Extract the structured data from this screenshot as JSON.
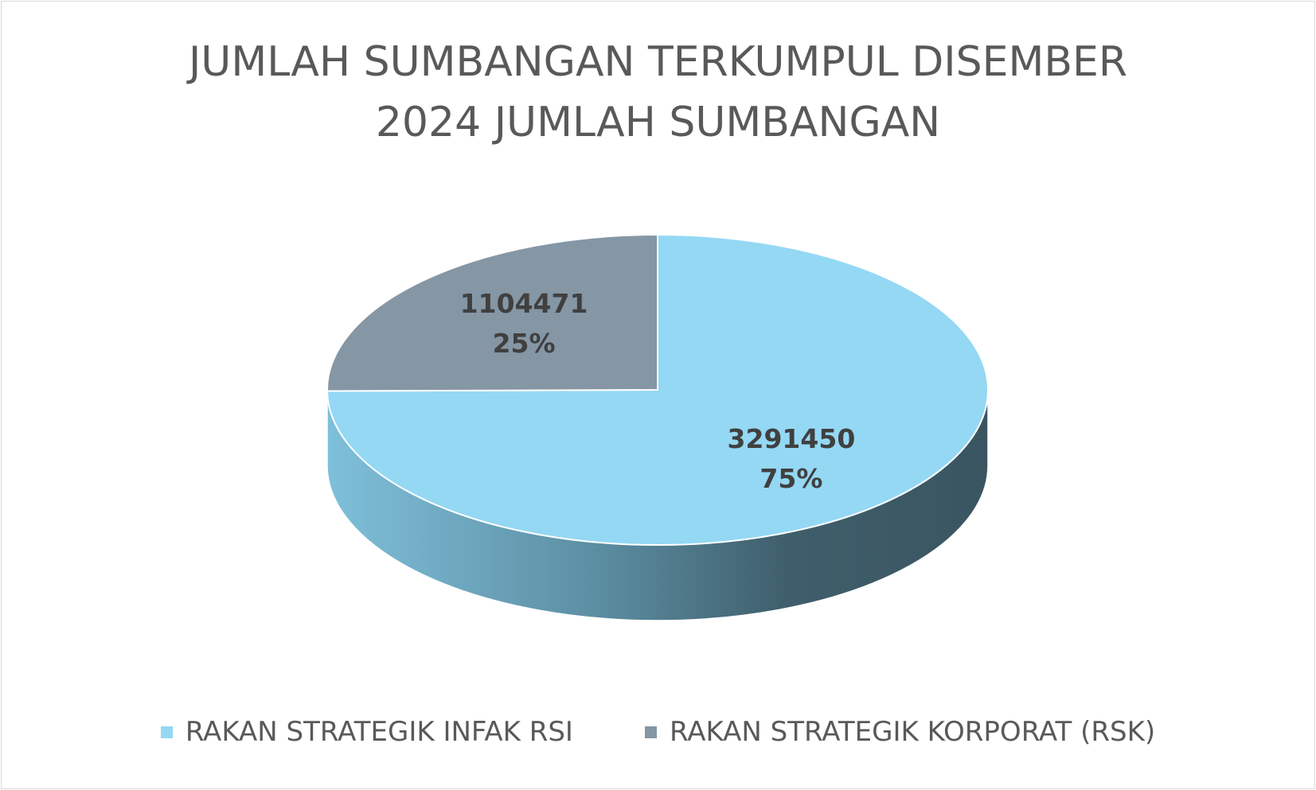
{
  "chart_data": {
    "type": "pie",
    "title_lines": [
      "JUMLAH SUMBANGAN TERKUMPUL DISEMBER",
      "2024 JUMLAH SUMBANGAN"
    ],
    "series": [
      {
        "categories": [
          "RAKAN STRATEGIK INFAK RSI",
          "RAKAN STRATEGIK KORPORAT (RSK)"
        ],
        "values": [
          3291450,
          1104471
        ],
        "data_labels": [
          "3291450",
          "1104471"
        ],
        "percent_labels": [
          "75%",
          "25%"
        ],
        "colors": [
          "#94d8f4",
          "#8596a5"
        ]
      }
    ],
    "legend": "bottom",
    "style": "3d"
  }
}
